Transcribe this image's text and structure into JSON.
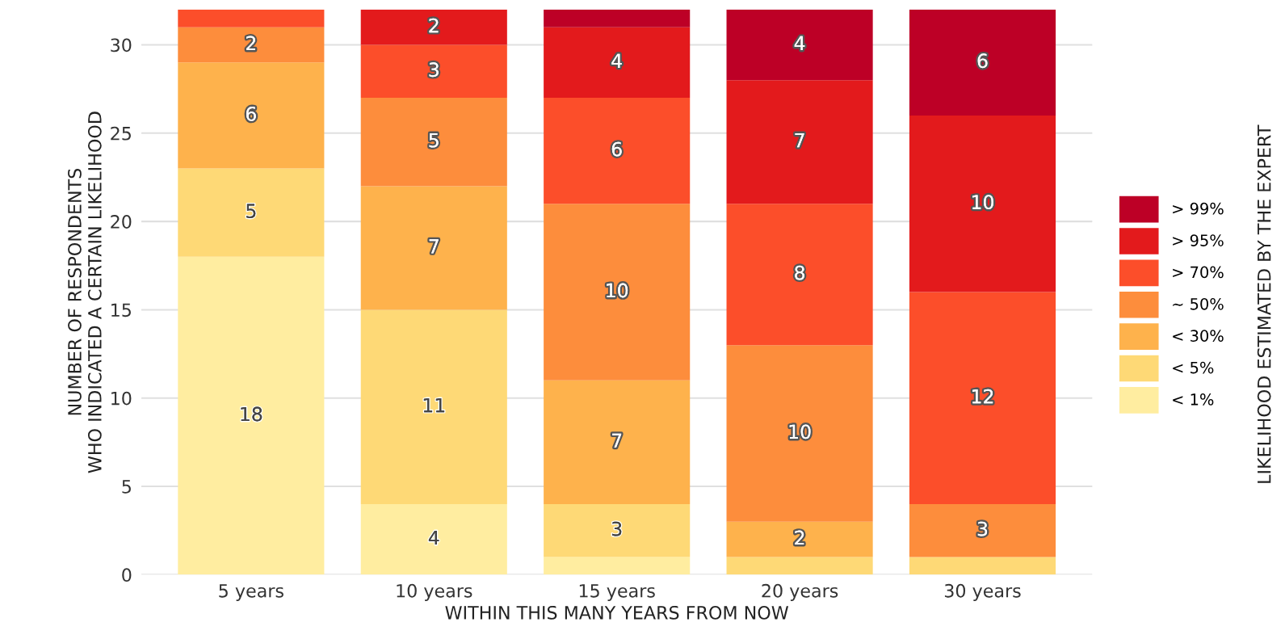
{
  "chart_data": {
    "type": "bar",
    "stacked": true,
    "xlabel": "WITHIN THIS MANY YEARS FROM NOW",
    "ylabel": "NUMBER OF RESPONDENTS\nWHO INDICATED A CERTAIN LIKELIHOOD",
    "legend_title": "LIKELIHOOD ESTIMATED BY THE EXPERT",
    "categories": [
      "5 years",
      "10 years",
      "15 years",
      "20 years",
      "30 years"
    ],
    "series": [
      {
        "name": "< 1%",
        "color": "#ffeda0",
        "values": [
          18,
          4,
          1,
          0,
          0
        ],
        "value_labels": [
          "18",
          "4",
          null,
          null,
          null
        ]
      },
      {
        "name": "< 5%",
        "color": "#fed976",
        "values": [
          5,
          11,
          3,
          1,
          1
        ],
        "value_labels": [
          "5",
          "11",
          "3",
          null,
          null
        ]
      },
      {
        "name": "< 30%",
        "color": "#feb24c",
        "values": [
          6,
          7,
          7,
          2,
          0
        ],
        "value_labels": [
          "6",
          "7",
          "7",
          "2",
          null
        ]
      },
      {
        "name": "~ 50%",
        "color": "#fd8d3c",
        "values": [
          2,
          5,
          10,
          10,
          3
        ],
        "value_labels": [
          "2",
          "5",
          "10",
          "10",
          "3"
        ]
      },
      {
        "name": "> 70%",
        "color": "#fc4e2a",
        "values": [
          1,
          3,
          6,
          8,
          12
        ],
        "value_labels": [
          null,
          "3",
          "6",
          "8",
          "12"
        ]
      },
      {
        "name": "> 95%",
        "color": "#e31a1c",
        "values": [
          0,
          2,
          4,
          7,
          10
        ],
        "value_labels": [
          null,
          "2",
          "4",
          "7",
          "10"
        ]
      },
      {
        "name": "> 99%",
        "color": "#bd0026",
        "values": [
          0,
          0,
          1,
          4,
          6
        ],
        "value_labels": [
          null,
          null,
          null,
          "4",
          "6"
        ]
      }
    ],
    "ylim": [
      0,
      32
    ],
    "yticks": [
      0,
      5,
      10,
      15,
      20,
      25,
      30
    ],
    "grid": "y",
    "legend": "right"
  }
}
